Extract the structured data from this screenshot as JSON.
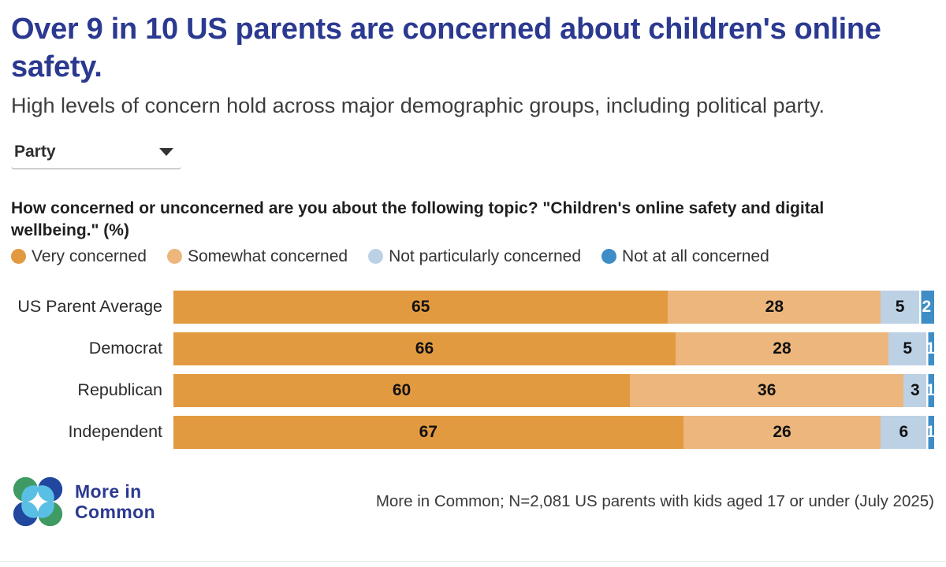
{
  "header": {
    "title": "Over 9 in 10 US parents are concerned about children's online safety.",
    "subtitle": "High levels of concern hold across major demographic groups, including political party."
  },
  "controls": {
    "party_dropdown": {
      "value": "Party",
      "icon": "chevron-down-icon"
    }
  },
  "question": "How concerned or unconcerned are you about the following topic? \"Children's online safety and digital wellbeing.\" (%)",
  "chart_data": {
    "type": "bar",
    "orientation": "horizontal",
    "stacked": true,
    "unit": "percent",
    "xlim": [
      0,
      100
    ],
    "grid": false,
    "legend_position": "top",
    "categories": [
      "US Parent Average",
      "Democrat",
      "Republican",
      "Independent"
    ],
    "series": [
      {
        "name": "Very concerned",
        "color": "#E29A41",
        "label_color": "#111111",
        "values": [
          65,
          66,
          60,
          67
        ]
      },
      {
        "name": "Somewhat concerned",
        "color": "#ECB67C",
        "label_color": "#111111",
        "values": [
          28,
          28,
          36,
          26
        ]
      },
      {
        "name": "Not particularly concerned",
        "color": "#BDD1E5",
        "label_color": "#111111",
        "values": [
          5,
          5,
          3,
          6
        ]
      },
      {
        "name": "Not at all concerned",
        "color": "#3E8DC6",
        "label_color": "#FFFFFF",
        "values": [
          2,
          1,
          1,
          1
        ]
      }
    ]
  },
  "footer": {
    "logo": {
      "icon": "more-in-common-logo",
      "line1": "More in",
      "line2": "Common"
    },
    "source_note": "More in Common; N=2,081 US parents with kids aged 17 or under (July 2025)"
  },
  "theme": {
    "title_color": "#2B3990",
    "logo_navy": "#21479E",
    "logo_green": "#3F9A63",
    "logo_light_blue": "#5ABFE5"
  }
}
